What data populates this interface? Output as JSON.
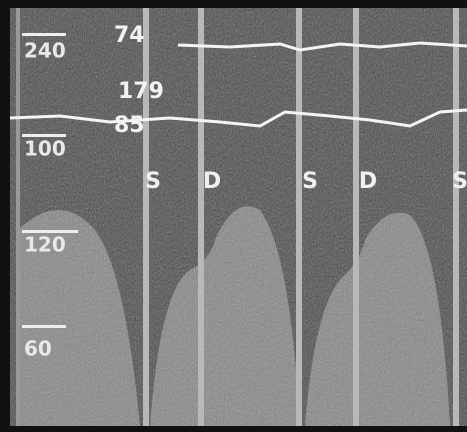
{
  "scale_labels": [
    "240",
    "100",
    "120",
    "60"
  ],
  "readings": [
    "74",
    "179",
    "85"
  ],
  "markers": [
    "S",
    "D",
    "S",
    "D",
    "S"
  ]
}
